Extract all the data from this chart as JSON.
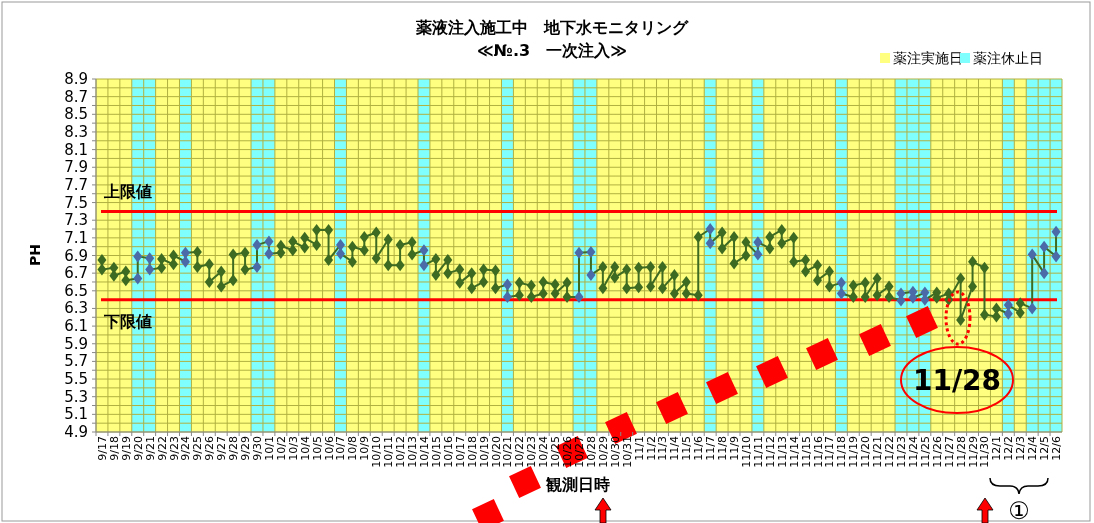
{
  "chart_data": {
    "type": "line",
    "title": "薬液注入施工中　地下水モニタリング",
    "subtitle": "≪№.3　一次注入≫",
    "xlabel": "観測日時",
    "ylabel": "PH",
    "categories": [
      "9/17",
      "9/18",
      "9/19",
      "9/20",
      "9/21",
      "9/22",
      "9/23",
      "9/24",
      "9/25",
      "9/26",
      "9/27",
      "9/28",
      "9/29",
      "9/30",
      "10/1",
      "10/2",
      "10/3",
      "10/4",
      "10/5",
      "10/6",
      "10/7",
      "10/8",
      "10/9",
      "10/10",
      "10/11",
      "10/12",
      "10/13",
      "10/14",
      "10/15",
      "10/16",
      "10/17",
      "10/18",
      "10/19",
      "10/20",
      "10/21",
      "10/22",
      "10/23",
      "10/24",
      "10/25",
      "10/26",
      "10/27",
      "10/28",
      "10/29",
      "10/30",
      "10/31",
      "11/1",
      "11/2",
      "11/3",
      "11/4",
      "11/5",
      "11/6",
      "11/7",
      "11/8",
      "11/9",
      "11/10",
      "11/11",
      "11/12",
      "11/13",
      "11/14",
      "11/15",
      "11/16",
      "11/17",
      "11/18",
      "11/19",
      "11/20",
      "11/21",
      "11/22",
      "11/23",
      "11/24",
      "11/25",
      "11/26",
      "11/27",
      "11/28",
      "11/29",
      "11/30",
      "12/1",
      "12/2",
      "12/3",
      "12/4",
      "12/5",
      "12/6"
    ],
    "ylim": [
      4.9,
      8.9
    ],
    "yticks": [
      4.9,
      {
        "value": 5.0,
        "label": null
      },
      5.1,
      {
        "value": 5.2,
        "label": null
      },
      5.3,
      {
        "value": 5.4,
        "label": null
      },
      5.5,
      {
        "value": 5.6,
        "label": null
      },
      5.7,
      {
        "value": 5.8,
        "label": null
      },
      5.9,
      {
        "value": 6.0,
        "label": null
      },
      6.1,
      {
        "value": 6.2,
        "label": null
      },
      6.3,
      6.5,
      {
        "value": 6.6,
        "label": null
      },
      6.7,
      {
        "value": 6.8,
        "label": null
      },
      6.9,
      {
        "value": 7.0,
        "label": null
      },
      7.1,
      {
        "value": 7.2,
        "label": null
      },
      7.3,
      7.5,
      {
        "value": 7.6,
        "label": null
      },
      7.7,
      {
        "value": 7.8,
        "label": null
      },
      7.9,
      {
        "value": 8.0,
        "label": null
      },
      8.1,
      {
        "value": 8.2,
        "label": null
      },
      8.3,
      {
        "value": 8.4,
        "label": null
      },
      8.5,
      {
        "value": 8.6,
        "label": null
      },
      8.7,
      {
        "value": 8.8,
        "label": null
      },
      8.9
    ],
    "grid": true,
    "legend": "top right",
    "marker": "diamond",
    "line_style": "solid",
    "series": [
      {
        "color": "#3e6b22",
        "x": [
          "9/17",
          "9/17",
          "9/18",
          "9/18",
          "9/19",
          "9/19",
          "9/20",
          "9/20",
          "9/21",
          "9/21",
          "9/22",
          "9/22",
          "9/23",
          "9/23",
          "9/24",
          "9/24",
          "9/25",
          "9/25",
          "9/26",
          "9/26",
          "9/27",
          "9/27",
          "9/28",
          "9/28",
          "9/29",
          "9/29",
          "9/30",
          "9/30",
          "10/1",
          "10/1",
          "10/2",
          "10/2",
          "10/3",
          "10/3",
          "10/4",
          "10/4",
          "10/5",
          "10/5",
          "10/6",
          "10/6",
          "10/7",
          "10/7",
          "10/8",
          "10/8",
          "10/9",
          "10/9",
          "10/10",
          "10/10",
          "10/11",
          "10/11",
          "10/12",
          "10/12",
          "10/13",
          "10/13",
          "10/14",
          "10/14",
          "10/15",
          "10/15",
          "10/16",
          "10/16",
          "10/17",
          "10/17",
          "10/18",
          "10/18",
          "10/19",
          "10/19",
          "10/20",
          "10/20",
          "10/21",
          "10/21",
          "10/22",
          "10/22",
          "10/23",
          "10/23",
          "10/24",
          "10/24",
          "10/25",
          "10/25",
          "10/26",
          "10/26",
          "10/27",
          "10/27",
          "10/28",
          "10/28",
          "10/29",
          "10/29",
          "10/30",
          "10/30",
          "10/31",
          "10/31",
          "11/1",
          "11/1",
          "11/2",
          "11/2",
          "11/3",
          "11/3",
          "11/4",
          "11/4",
          "11/5",
          "11/5",
          "11/6",
          "11/6",
          "11/7",
          "11/7",
          "11/8",
          "11/8",
          "11/9",
          "11/9",
          "11/10",
          "11/10",
          "11/11",
          "11/11",
          "11/12",
          "11/12",
          "11/13",
          "11/13",
          "11/14",
          "11/14",
          "11/15",
          "11/15",
          "11/16",
          "11/16",
          "11/17",
          "11/17",
          "11/18",
          "11/18",
          "11/19",
          "11/19",
          "11/20",
          "11/20",
          "11/21",
          "11/21",
          "11/22",
          "11/22",
          "11/23",
          "11/23",
          "11/24",
          "11/24",
          "11/25",
          "11/25",
          "11/26",
          "11/26",
          "11/27",
          "11/27",
          "11/28",
          "11/28",
          "11/29",
          "11/29",
          "11/30",
          "11/30",
          "12/1",
          "12/1",
          "12/2",
          "12/2",
          "12/3",
          "12/3",
          "12/4",
          "12/4",
          "12/5",
          "12/5",
          "12/6",
          "12/6"
        ],
        "values": [
          6.85,
          6.74,
          6.76,
          6.67,
          6.72,
          6.62,
          6.64,
          6.89,
          6.87,
          6.74,
          6.76,
          6.86,
          6.8,
          6.9,
          6.83,
          6.93,
          6.94,
          6.77,
          6.8,
          6.6,
          6.72,
          6.55,
          6.62,
          6.91,
          6.93,
          6.74,
          6.77,
          7.02,
          7.06,
          6.92,
          6.93,
          7.01,
          6.96,
          7.06,
          6.99,
          7.1,
          7.02,
          7.19,
          7.19,
          6.85,
          7.02,
          6.92,
          6.83,
          7.0,
          6.96,
          7.11,
          7.16,
          6.87,
          7.08,
          6.79,
          6.79,
          7.02,
          7.05,
          6.91,
          6.96,
          6.79,
          6.86,
          6.68,
          6.85,
          6.7,
          6.74,
          6.59,
          6.7,
          6.53,
          6.6,
          6.74,
          6.73,
          6.53,
          6.57,
          6.43,
          6.45,
          6.59,
          6.56,
          6.43,
          6.47,
          6.6,
          6.57,
          6.47,
          6.59,
          6.43,
          6.43,
          6.93,
          6.94,
          6.68,
          6.77,
          6.53,
          6.77,
          6.65,
          6.74,
          6.53,
          6.54,
          6.76,
          6.77,
          6.55,
          6.77,
          6.53,
          6.68,
          6.47,
          6.6,
          6.47,
          6.45,
          7.11,
          7.2,
          7.04,
          7.16,
          6.98,
          7.11,
          6.81,
          6.9,
          7.05,
          6.91,
          7.05,
          6.98,
          7.11,
          7.19,
          7.04,
          7.1,
          6.83,
          6.85,
          6.72,
          6.79,
          6.62,
          6.72,
          6.55,
          6.59,
          6.47,
          6.43,
          6.56,
          6.59,
          6.43,
          6.64,
          6.45,
          6.55,
          6.43,
          6.39,
          6.47,
          6.49,
          6.42,
          6.48,
          6.4,
          6.48,
          6.42,
          6.47,
          6.4,
          6.64,
          6.17,
          6.55,
          6.83,
          6.76,
          6.23,
          6.21,
          6.3,
          6.24,
          6.34,
          6.25,
          6.36,
          6.3,
          6.91,
          6.7,
          7.0,
          6.89,
          7.17
        ],
        "colors": [
          "#3e6b22",
          "#3e6b22",
          "#3e6b22",
          "#3e6b22",
          "#3e6b22",
          "#3e6b22",
          "#4a6aa8",
          "#4a6aa8",
          "#4a6aa8",
          "#4a6aa8",
          "#3e6b22",
          "#3e6b22",
          "#3e6b22",
          "#3e6b22",
          "#4a6aa8",
          "#4a6aa8",
          "#3e6b22",
          "#3e6b22",
          "#3e6b22",
          "#3e6b22",
          "#3e6b22",
          "#3e6b22",
          "#3e6b22",
          "#3e6b22",
          "#3e6b22",
          "#3e6b22",
          "#4a6aa8",
          "#4a6aa8",
          "#4a6aa8",
          "#4a6aa8",
          "#3e6b22",
          "#3e6b22",
          "#3e6b22",
          "#3e6b22",
          "#3e6b22",
          "#3e6b22",
          "#3e6b22",
          "#3e6b22",
          "#3e6b22",
          "#3e6b22",
          "#4a6aa8",
          "#4a6aa8",
          "#3e6b22",
          "#3e6b22",
          "#3e6b22",
          "#3e6b22",
          "#3e6b22",
          "#3e6b22",
          "#3e6b22",
          "#3e6b22",
          "#3e6b22",
          "#3e6b22",
          "#3e6b22",
          "#3e6b22",
          "#4a6aa8",
          "#4a6aa8",
          "#3e6b22",
          "#3e6b22",
          "#3e6b22",
          "#3e6b22",
          "#3e6b22",
          "#3e6b22",
          "#3e6b22",
          "#3e6b22",
          "#3e6b22",
          "#3e6b22",
          "#3e6b22",
          "#3e6b22",
          "#4a6aa8",
          "#4a6aa8",
          "#3e6b22",
          "#3e6b22",
          "#3e6b22",
          "#3e6b22",
          "#3e6b22",
          "#3e6b22",
          "#3e6b22",
          "#3e6b22",
          "#3e6b22",
          "#3e6b22",
          "#4a6aa8",
          "#4a6aa8",
          "#4a6aa8",
          "#4a6aa8",
          "#3e6b22",
          "#3e6b22",
          "#3e6b22",
          "#3e6b22",
          "#3e6b22",
          "#3e6b22",
          "#3e6b22",
          "#3e6b22",
          "#3e6b22",
          "#3e6b22",
          "#3e6b22",
          "#3e6b22",
          "#3e6b22",
          "#3e6b22",
          "#3e6b22",
          "#3e6b22",
          "#3e6b22",
          "#3e6b22",
          "#4a6aa8",
          "#4a6aa8",
          "#3e6b22",
          "#3e6b22",
          "#3e6b22",
          "#3e6b22",
          "#3e6b22",
          "#3e6b22",
          "#4a6aa8",
          "#4a6aa8",
          "#3e6b22",
          "#3e6b22",
          "#3e6b22",
          "#3e6b22",
          "#3e6b22",
          "#3e6b22",
          "#3e6b22",
          "#3e6b22",
          "#3e6b22",
          "#3e6b22",
          "#3e6b22",
          "#3e6b22",
          "#4a6aa8",
          "#4a6aa8",
          "#3e6b22",
          "#3e6b22",
          "#3e6b22",
          "#3e6b22",
          "#3e6b22",
          "#3e6b22",
          "#3e6b22",
          "#3e6b22",
          "#4a6aa8",
          "#4a6aa8",
          "#4a6aa8",
          "#4a6aa8",
          "#4a6aa8",
          "#4a6aa8",
          "#3e6b22",
          "#3e6b22",
          "#3e6b22",
          "#3e6b22",
          "#3e6b22",
          "#3e6b22",
          "#3e6b22",
          "#3e6b22",
          "#3e6b22",
          "#3e6b22",
          "#3e6b22",
          "#3e6b22",
          "#4a6aa8",
          "#4a6aa8",
          "#3e6b22",
          "#3e6b22",
          "#4a6aa8",
          "#4a6aa8",
          "#4a6aa8",
          "#4a6aa8",
          "#4a6aa8",
          "#4a6aa8"
        ]
      }
    ],
    "bands": [
      {
        "axis": "x",
        "from": "9/17",
        "to": "12/6",
        "label": "薬注実施日",
        "color": "#ffff80"
      },
      {
        "axis": "x",
        "from": "9/20",
        "to": "9/21",
        "label": "薬注休止日",
        "color": "#80ffff"
      },
      {
        "axis": "x",
        "from": "9/24",
        "to": "9/24",
        "color": "#80ffff"
      },
      {
        "axis": "x",
        "from": "9/30",
        "to": "10/1",
        "color": "#80ffff"
      },
      {
        "axis": "x",
        "from": "10/7",
        "to": "10/7",
        "color": "#80ffff"
      },
      {
        "axis": "x",
        "from": "10/14",
        "to": "10/14",
        "color": "#80ffff"
      },
      {
        "axis": "x",
        "from": "10/21",
        "to": "10/21",
        "color": "#80ffff"
      },
      {
        "axis": "x",
        "from": "10/27",
        "to": "10/28",
        "color": "#80ffff"
      },
      {
        "axis": "x",
        "from": "11/7",
        "to": "11/7",
        "color": "#80ffff"
      },
      {
        "axis": "x",
        "from": "11/11",
        "to": "11/11",
        "color": "#80ffff"
      },
      {
        "axis": "x",
        "from": "11/18",
        "to": "11/18",
        "color": "#80ffff"
      },
      {
        "axis": "x",
        "from": "11/23",
        "to": "11/25",
        "color": "#80ffff"
      },
      {
        "axis": "x",
        "from": "12/2",
        "to": "12/2",
        "color": "#80ffff"
      },
      {
        "axis": "x",
        "from": "12/4",
        "to": "12/6",
        "color": "#80ffff"
      }
    ],
    "ref_lines": [
      {
        "axis": "y",
        "value": 7.4,
        "label": "上限値",
        "color": "#ff0000"
      },
      {
        "axis": "y",
        "value": 6.4,
        "label": "下限値",
        "color": "#ff0000"
      }
    ],
    "annotations": [
      "11/28",
      "①"
    ]
  }
}
